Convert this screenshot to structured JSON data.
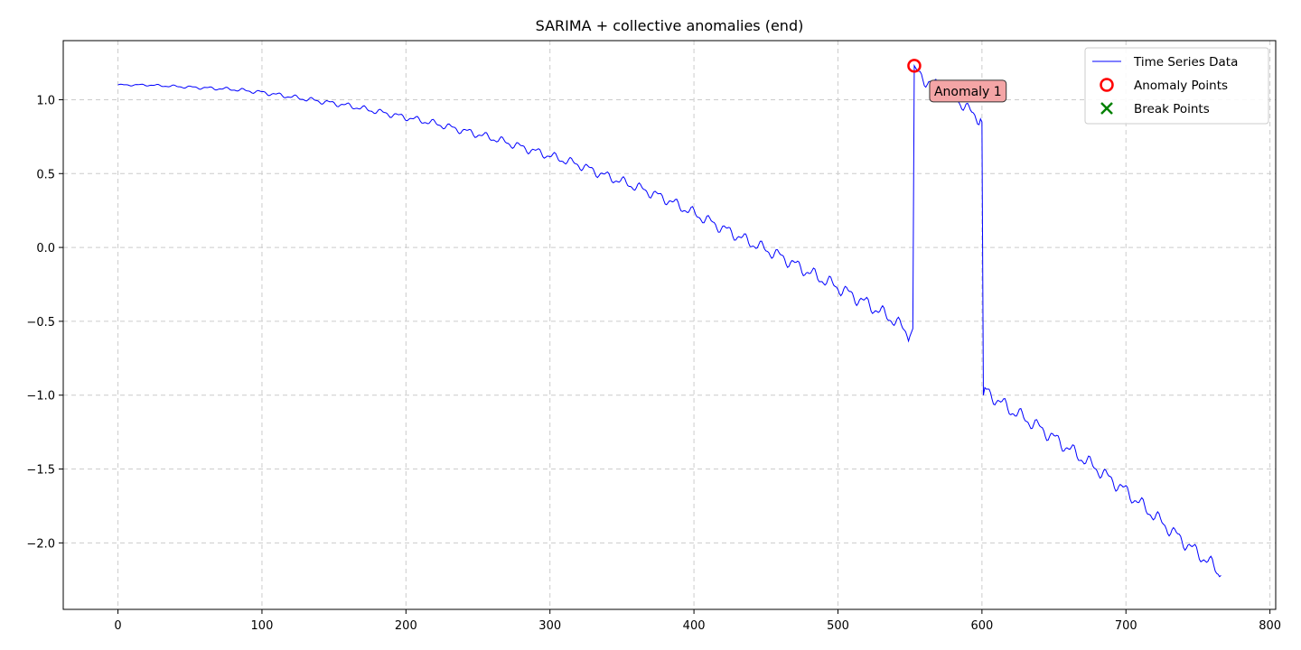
{
  "chart_data": {
    "type": "line",
    "title": "SARIMA + collective anomalies (end)",
    "xlabel": "",
    "ylabel": "",
    "xlim": [
      -38,
      804
    ],
    "ylim": [
      -2.45,
      1.4
    ],
    "xticks": [
      0,
      100,
      200,
      300,
      400,
      500,
      600,
      700,
      800
    ],
    "yticks": [
      -2.0,
      -1.5,
      -1.0,
      -0.5,
      0.0,
      0.5,
      1.0
    ],
    "ytick_labels": [
      "−2.0",
      "−1.5",
      "−1.0",
      "−0.5",
      "0.0",
      "0.5",
      "1.0"
    ],
    "grid": true,
    "legend_position": "top-right",
    "series": [
      {
        "name": "Time Series Data",
        "color": "#0000ff",
        "x": [
          0,
          20,
          40,
          60,
          80,
          100,
          120,
          140,
          160,
          180,
          200,
          220,
          240,
          260,
          280,
          300,
          320,
          340,
          360,
          380,
          400,
          420,
          440,
          460,
          480,
          500,
          520,
          540,
          550,
          552,
          553,
          555,
          560,
          570,
          580,
          590,
          599,
          600,
          601,
          602,
          620,
          640,
          660,
          680,
          700,
          720,
          740,
          760,
          766
        ],
        "y": [
          1.1,
          1.1,
          1.09,
          1.08,
          1.07,
          1.05,
          1.02,
          0.99,
          0.96,
          0.92,
          0.88,
          0.84,
          0.79,
          0.74,
          0.68,
          0.62,
          0.56,
          0.48,
          0.41,
          0.33,
          0.23,
          0.13,
          0.03,
          -0.06,
          -0.17,
          -0.27,
          -0.38,
          -0.5,
          -0.6,
          -0.55,
          1.23,
          1.18,
          1.14,
          1.08,
          1.04,
          0.93,
          0.87,
          0.85,
          -1.0,
          -0.97,
          -1.1,
          -1.22,
          -1.36,
          -1.5,
          -1.65,
          -1.82,
          -1.99,
          -2.15,
          -2.22
        ]
      }
    ],
    "anomaly_points": {
      "name": "Anomaly Points",
      "color": "#ff0000",
      "x": [
        553
      ],
      "y": [
        1.23
      ]
    },
    "break_points": {
      "name": "Break Points",
      "color": "#008000",
      "x": [],
      "y": []
    },
    "annotations": [
      {
        "text": "Anomaly 1",
        "x": 553,
        "y": 1.23,
        "box_color": "#f4a5a6"
      }
    ]
  }
}
